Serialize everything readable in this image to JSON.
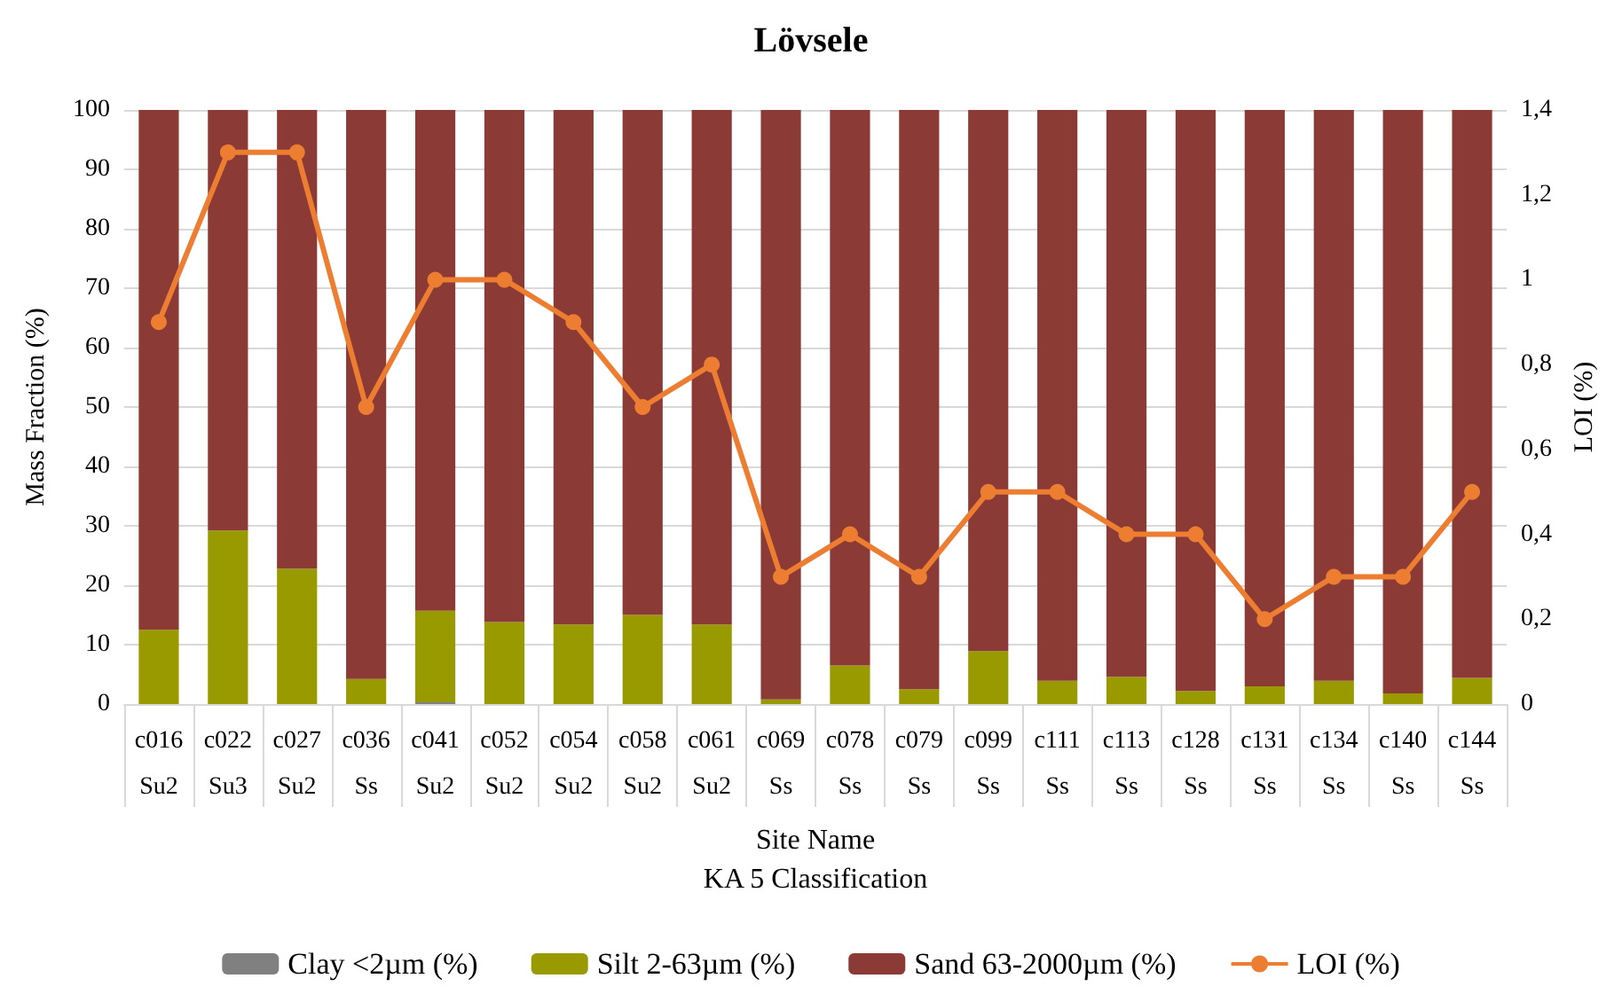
{
  "chart_data": {
    "type": "bar",
    "title": "Lövsele",
    "xlabel": "Site Name\nKA 5 Classification",
    "ylabel": "Mass Fraction (%)",
    "y2label": "LOI (%)",
    "categories": [
      "c016\nSu2",
      "c022\nSu3",
      "c027\nSu2",
      "c036\nSs",
      "c041\nSu2",
      "c052\nSu2",
      "c054\nSu2",
      "c058\nSu2",
      "c061\nSu2",
      "c069\nSs",
      "c078\nSs",
      "c079\nSs",
      "c099\nSs",
      "c111\nSs",
      "c113\nSs",
      "c128\nSs",
      "c131\nSs",
      "c134\nSs",
      "c140\nSs",
      "c144\nSs"
    ],
    "stacked": true,
    "series": [
      {
        "name": "Clay <2µm (%)",
        "color": "#808080",
        "values": [
          0,
          0,
          0,
          0,
          0.3,
          0,
          0,
          0,
          0,
          0,
          0,
          0,
          0,
          0,
          0,
          0,
          0,
          0,
          0,
          0
        ]
      },
      {
        "name": "Silt 2-63µm (%)",
        "color": "#999900",
        "values": [
          12.5,
          29.2,
          22.8,
          4.2,
          15.4,
          13.8,
          13.4,
          15,
          13.4,
          0.8,
          6.5,
          2.5,
          8.9,
          3.9,
          4.6,
          2.2,
          3,
          3.9,
          1.8,
          4.4
        ]
      },
      {
        "name": "Sand 63-2000µm (%)",
        "color": "#8b3a35",
        "values": [
          87.5,
          70.8,
          77.2,
          95.8,
          84.3,
          86.2,
          86.6,
          85,
          86.6,
          99.2,
          93.5,
          97.5,
          91.1,
          96.1,
          95.4,
          97.8,
          97,
          96.1,
          98.2,
          95.6
        ]
      },
      {
        "name": "LOI (%)",
        "type": "line",
        "axis": "y2",
        "color": "#ed7d31",
        "marker": "circle",
        "values": [
          0.9,
          1.3,
          1.3,
          0.7,
          1,
          1,
          0.9,
          0.7,
          0.8,
          0.3,
          0.4,
          0.3,
          0.5,
          0.5,
          0.4,
          0.4,
          0.2,
          0.3,
          0.3,
          0.5
        ]
      }
    ],
    "ylim": [
      0,
      100
    ],
    "yticks": [
      0,
      10,
      20,
      30,
      40,
      50,
      60,
      70,
      80,
      90,
      100
    ],
    "y2lim": [
      0,
      1.4
    ],
    "y2ticks": [
      0,
      {
        "value": 0.2,
        "label": "0,2"
      },
      {
        "value": 0.4,
        "label": "0,4"
      },
      {
        "value": 0.6,
        "label": "0,6"
      },
      {
        "value": 0.8,
        "label": "0,8"
      },
      1,
      {
        "value": 1.2,
        "label": "1,2"
      },
      {
        "value": 1.4,
        "label": "1,4"
      }
    ],
    "grid": "y",
    "legend": "bottom"
  }
}
